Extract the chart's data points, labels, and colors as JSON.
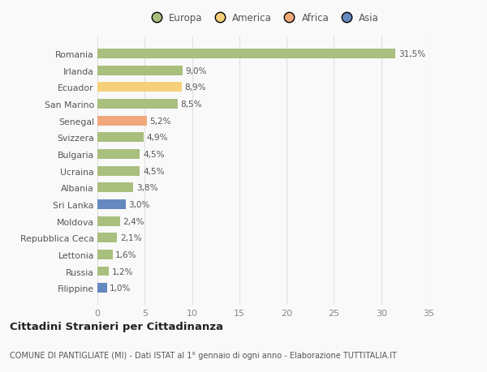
{
  "countries": [
    "Romania",
    "Irlanda",
    "Ecuador",
    "San Marino",
    "Senegal",
    "Svizzera",
    "Bulgaria",
    "Ucraina",
    "Albania",
    "Sri Lanka",
    "Moldova",
    "Repubblica Ceca",
    "Lettonia",
    "Russia",
    "Filippine"
  ],
  "values": [
    31.5,
    9.0,
    8.9,
    8.5,
    5.2,
    4.9,
    4.5,
    4.5,
    3.8,
    3.0,
    2.4,
    2.1,
    1.6,
    1.2,
    1.0
  ],
  "labels": [
    "31,5%",
    "9,0%",
    "8,9%",
    "8,5%",
    "5,2%",
    "4,9%",
    "4,5%",
    "4,5%",
    "3,8%",
    "3,0%",
    "2,4%",
    "2,1%",
    "1,6%",
    "1,2%",
    "1,0%"
  ],
  "colors": [
    "#a8bf7e",
    "#a8bf7e",
    "#f5d07a",
    "#a8bf7e",
    "#f0a87a",
    "#a8bf7e",
    "#a8bf7e",
    "#a8bf7e",
    "#a8bf7e",
    "#6688c0",
    "#a8bf7e",
    "#a8bf7e",
    "#a8bf7e",
    "#a8bf7e",
    "#6688c0"
  ],
  "legend_labels": [
    "Europa",
    "America",
    "Africa",
    "Asia"
  ],
  "legend_colors": [
    "#a8bf7e",
    "#f5d07a",
    "#f0a87a",
    "#6688c0"
  ],
  "xlim": [
    0,
    35
  ],
  "xticks": [
    0,
    5,
    10,
    15,
    20,
    25,
    30,
    35
  ],
  "title": "Cittadini Stranieri per Cittadinanza",
  "subtitle": "COMUNE DI PANTIGLIATE (MI) - Dati ISTAT al 1° gennaio di ogni anno - Elaborazione TUTTITALIA.IT",
  "bg_color": "#f9f9f9",
  "grid_color": "#e0e0e0",
  "bar_height": 0.58
}
